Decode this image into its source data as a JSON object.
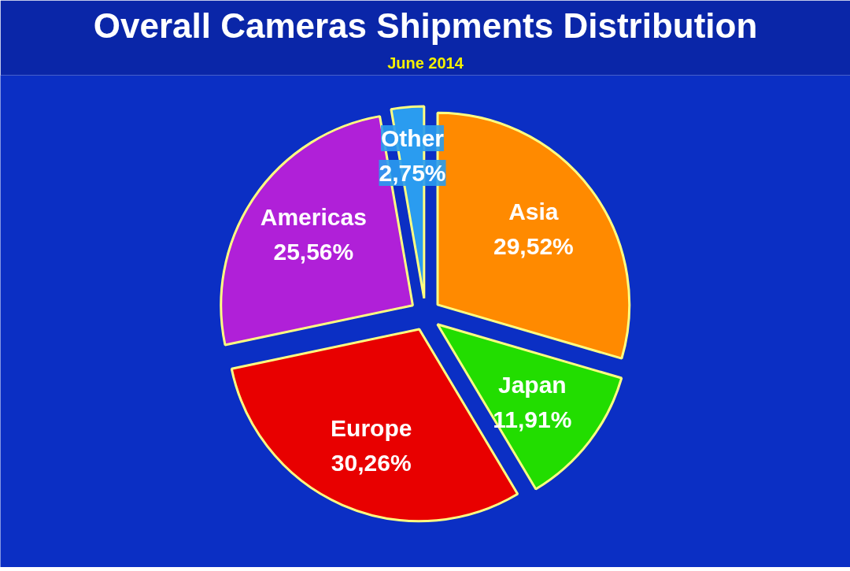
{
  "chart_data": {
    "type": "pie",
    "title": "Overall Cameras Shipments Distribution",
    "subtitle": "June 2014",
    "categories": [
      "Asia",
      "Japan",
      "Europe",
      "Americas",
      "Other"
    ],
    "values": [
      29.52,
      11.91,
      30.26,
      25.56,
      2.75
    ],
    "value_labels": [
      "29,52%",
      "11,91%",
      "30,26%",
      "25,56%",
      "2,75%"
    ],
    "colors": [
      "#ff8a00",
      "#22dd00",
      "#e80000",
      "#b020d8",
      "#2a9cf0"
    ]
  }
}
